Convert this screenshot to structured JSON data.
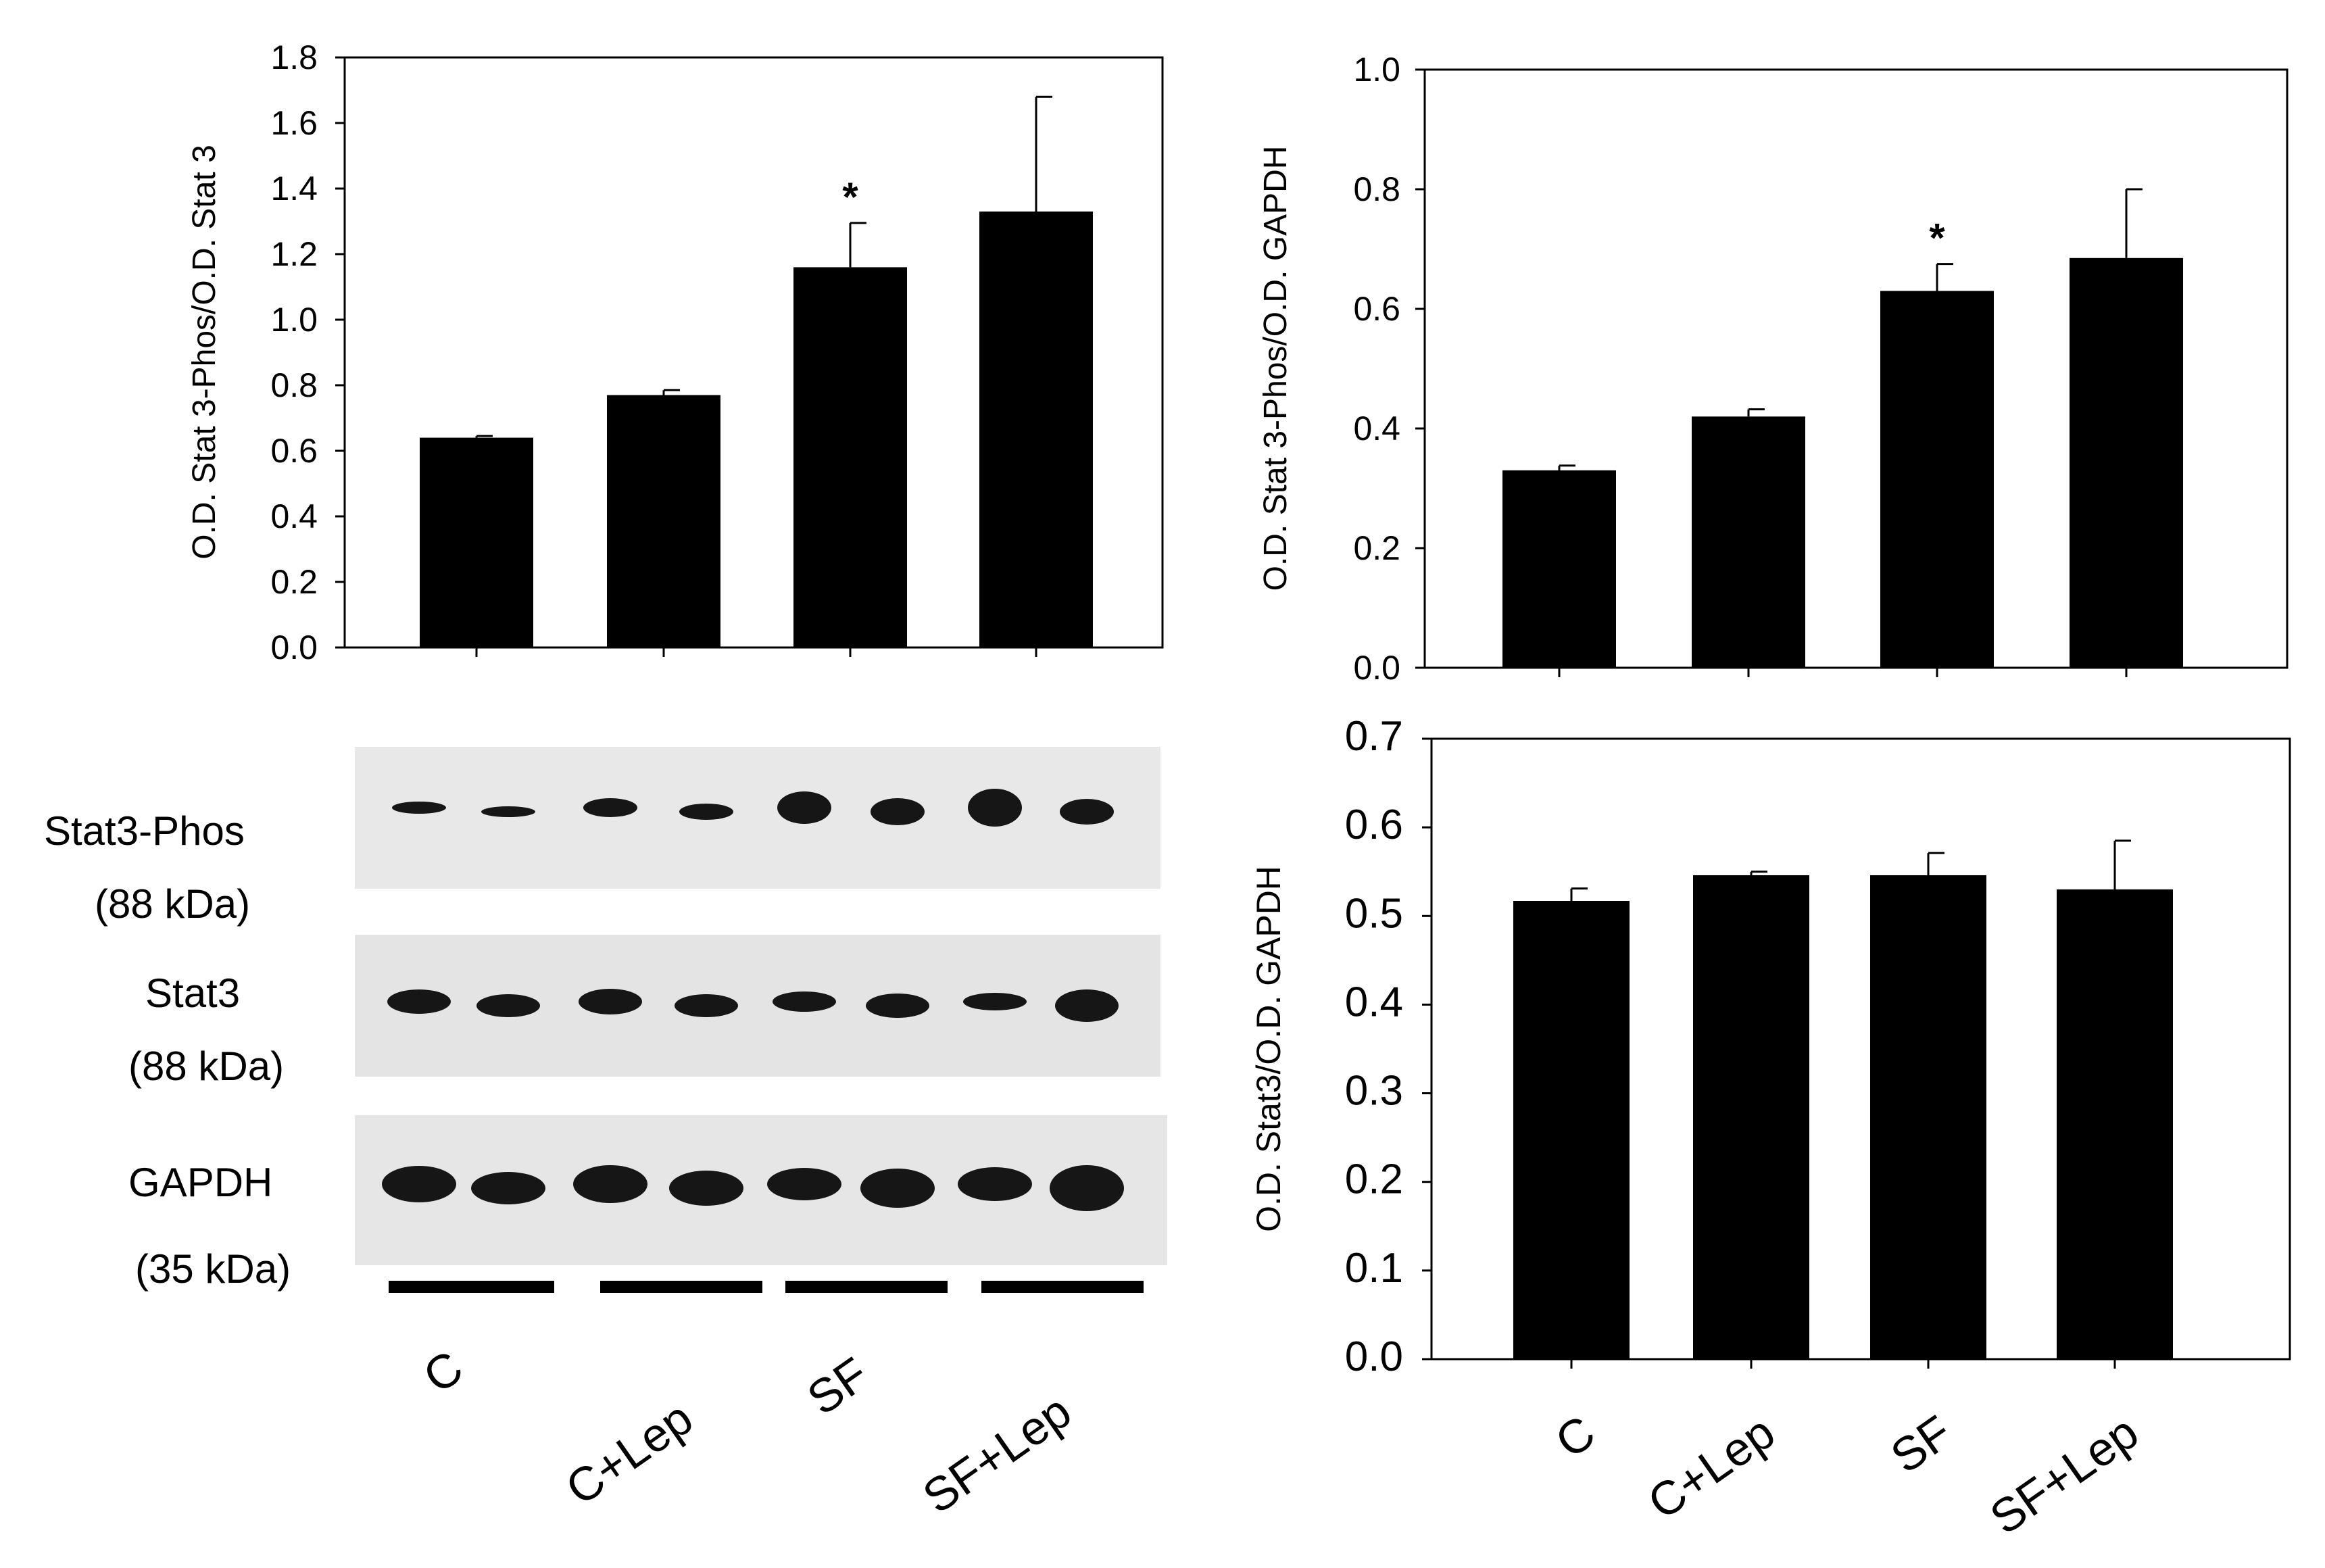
{
  "chart_data": [
    {
      "type": "bar",
      "categories": [
        "C",
        "C+Lep",
        "SF",
        "SF+Lep"
      ],
      "values": [
        0.64,
        0.77,
        1.16,
        1.33
      ],
      "errors": [
        0.005,
        0.015,
        0.135,
        0.35
      ],
      "annotations": [
        "",
        "",
        "*",
        ""
      ],
      "ylabel": "O.D. Stat 3-Phos/O.D. Stat 3",
      "ylim": [
        0,
        1.8
      ],
      "yticks": [
        "0.0",
        "0.2",
        "0.4",
        "0.6",
        "0.8",
        "1.0",
        "1.2",
        "1.4",
        "1.6",
        "1.8"
      ],
      "color": "#000000"
    },
    {
      "type": "bar",
      "categories": [
        "C",
        "C+Lep",
        "SF",
        "SF+Lep"
      ],
      "values": [
        0.33,
        0.42,
        0.63,
        0.685
      ],
      "errors": [
        0.008,
        0.012,
        0.045,
        0.115
      ],
      "annotations": [
        "",
        "",
        "*",
        ""
      ],
      "ylabel": "O.D. Stat 3-Phos/O.D. GAPDH",
      "ylim": [
        0,
        1.0
      ],
      "yticks": [
        "0.0",
        "0.2",
        "0.4",
        "0.6",
        "0.8",
        "1.0"
      ],
      "color": "#000000"
    },
    {
      "type": "bar",
      "categories": [
        "C",
        "C+Lep",
        "SF",
        "SF+Lep"
      ],
      "values": [
        0.517,
        0.546,
        0.546,
        0.53
      ],
      "errors": [
        0.014,
        0.004,
        0.025,
        0.055
      ],
      "annotations": [
        "",
        "",
        "",
        ""
      ],
      "ylabel": "O.D. Stat3/O.D. GAPDH",
      "ylim": [
        0,
        0.7
      ],
      "yticks": [
        "0.0",
        "0.1",
        "0.2",
        "0.3",
        "0.4",
        "0.5",
        "0.6",
        "0.7"
      ],
      "color": "#000000"
    }
  ],
  "blot": {
    "rows": [
      {
        "name": "Stat3-Phos",
        "size": "(88 kDa)"
      },
      {
        "name": "Stat3",
        "size": "(88 kDa)"
      },
      {
        "name": "GAPDH",
        "size": "(35 kDa)"
      }
    ],
    "groups": [
      "C",
      "C+Lep",
      "SF",
      "SF+Lep"
    ]
  }
}
